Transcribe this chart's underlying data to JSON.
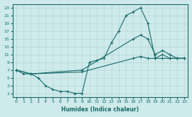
{
  "xlabel": "Humidex (Indice chaleur)",
  "bg_color": "#ceeaea",
  "grid_color": "#b8d8d8",
  "line_color": "#1a6b6b",
  "xlim": [
    -0.5,
    23.5
  ],
  "ylim": [
    0,
    24
  ],
  "xticks": [
    0,
    1,
    2,
    3,
    4,
    5,
    6,
    7,
    8,
    9,
    10,
    11,
    12,
    13,
    14,
    15,
    16,
    17,
    18,
    19,
    20,
    21,
    22,
    23
  ],
  "yticks": [
    1,
    3,
    5,
    7,
    9,
    11,
    13,
    15,
    17,
    19,
    21,
    23
  ],
  "line1_x": [
    0,
    1,
    2,
    3,
    4,
    5,
    6,
    7,
    8,
    9,
    10,
    11,
    12,
    13,
    14,
    15,
    16,
    17,
    18,
    19,
    20,
    21,
    22,
    23
  ],
  "line1_y": [
    7,
    6,
    6,
    5,
    3,
    2,
    1.5,
    1.5,
    1,
    1,
    9,
    9.5,
    10,
    14,
    17,
    21,
    22,
    23,
    19,
    10,
    11,
    10,
    10,
    10
  ],
  "line2_x": [
    0,
    2,
    9,
    16,
    17,
    18,
    19,
    20,
    21,
    22,
    23
  ],
  "line2_y": [
    7,
    6,
    6.5,
    10,
    10.5,
    10,
    10,
    10,
    10,
    10,
    10
  ],
  "line3_x": [
    0,
    2,
    9,
    16,
    17,
    18,
    19,
    20,
    21,
    22,
    23
  ],
  "line3_y": [
    7,
    6,
    7,
    15,
    16,
    15,
    11,
    12,
    11,
    10,
    10
  ]
}
